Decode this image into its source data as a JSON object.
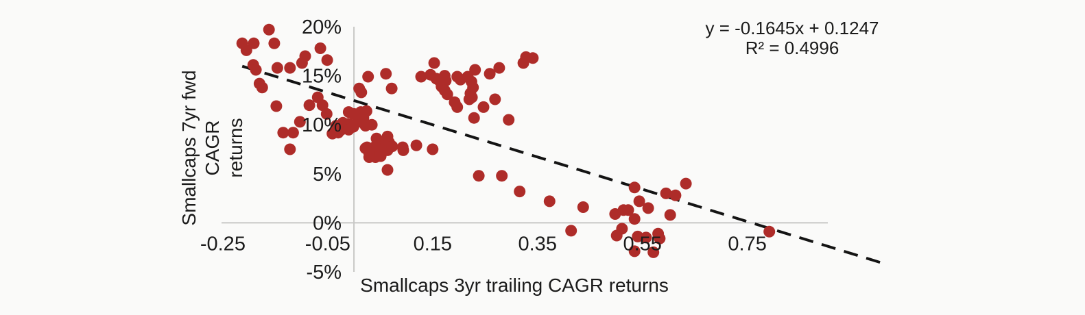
{
  "colors": {
    "dot": "#AE2C29",
    "axis_line": "#C8C8C6",
    "trendline": "#141414",
    "text": "#1b1b1b",
    "background": "#FAFAF9"
  },
  "chart_data": {
    "type": "scatter",
    "title": "",
    "xlabel": "Smallcaps 3yr trailing CAGR returns",
    "ylabel_lines": [
      "Smallcaps 7yr fwd CAGR",
      "returns"
    ],
    "legend": "none",
    "grid": "axis lines only",
    "xlim": [
      -0.2525,
      0.9035
    ],
    "ylim_percent": [
      -5,
      20
    ],
    "x_ticks": {
      "values": [
        -0.25,
        -0.05,
        0.15,
        0.35,
        0.55,
        0.75
      ],
      "labels": [
        "-0.25",
        "-0.05",
        "0.15",
        "0.35",
        "0.55",
        "0.75"
      ]
    },
    "y_ticks": {
      "values": [
        20,
        15,
        10,
        5,
        0,
        -5
      ],
      "labels": [
        "20%",
        "15%",
        "10%",
        "5%",
        "0%",
        "-5%"
      ]
    },
    "annotation": {
      "line1": "y = -0.1645x + 0.1247",
      "line2": "R² = 0.4996"
    },
    "trendline": {
      "style": "dashed",
      "slope": -0.1645,
      "intercept": 0.1247,
      "x_start": -0.213,
      "x_end": 1.015
    },
    "points": [
      [
        -0.213,
        18.3
      ],
      [
        -0.191,
        18.3
      ],
      [
        -0.205,
        17.6
      ],
      [
        -0.162,
        19.7
      ],
      [
        -0.152,
        18.3
      ],
      [
        -0.192,
        16.1
      ],
      [
        -0.187,
        15.6
      ],
      [
        -0.146,
        15.8
      ],
      [
        -0.122,
        15.8
      ],
      [
        -0.093,
        17.0
      ],
      [
        -0.099,
        16.3
      ],
      [
        -0.18,
        14.2
      ],
      [
        -0.175,
        13.8
      ],
      [
        -0.064,
        17.8
      ],
      [
        -0.051,
        16.6
      ],
      [
        -0.069,
        12.8
      ],
      [
        -0.085,
        12.0
      ],
      [
        -0.148,
        11.9
      ],
      [
        -0.06,
        12.0
      ],
      [
        -0.052,
        11.1
      ],
      [
        -0.103,
        10.3
      ],
      [
        -0.135,
        9.2
      ],
      [
        -0.116,
        9.2
      ],
      [
        -0.122,
        7.5
      ],
      [
        -0.034,
        9.9
      ],
      [
        -0.024,
        9.5
      ],
      [
        -0.021,
        10.2
      ],
      [
        -0.01,
        10.1
      ],
      [
        -0.03,
        9.2
      ],
      [
        -0.041,
        9.1
      ],
      [
        -0.01,
        9.5
      ],
      [
        -0.001,
        9.8
      ],
      [
        -0.01,
        11.3
      ],
      [
        0.0,
        11.1
      ],
      [
        0.013,
        11.3
      ],
      [
        0.024,
        11.4
      ],
      [
        0.008,
        10.3
      ],
      [
        0.018,
        10.7
      ],
      [
        0.01,
        13.7
      ],
      [
        0.014,
        13.3
      ],
      [
        0.027,
        14.9
      ],
      [
        0.061,
        15.2
      ],
      [
        0.072,
        13.7
      ],
      [
        0.022,
        9.9
      ],
      [
        0.025,
        7.7
      ],
      [
        0.029,
        6.7
      ],
      [
        0.034,
        10.0
      ],
      [
        0.041,
        7.8
      ],
      [
        0.041,
        6.7
      ],
      [
        0.043,
        8.6
      ],
      [
        0.051,
        6.8
      ],
      [
        0.054,
        7.8
      ],
      [
        0.061,
        8.1
      ],
      [
        0.064,
        8.8
      ],
      [
        0.064,
        7.4
      ],
      [
        0.067,
        8.2
      ],
      [
        0.073,
        7.8
      ],
      [
        0.093,
        7.7
      ],
      [
        0.094,
        7.4
      ],
      [
        0.022,
        7.6
      ],
      [
        0.029,
        7.1
      ],
      [
        0.064,
        5.4
      ],
      [
        0.119,
        7.9
      ],
      [
        0.15,
        7.5
      ],
      [
        0.153,
        16.3
      ],
      [
        0.128,
        14.9
      ],
      [
        0.146,
        15.1
      ],
      [
        0.157,
        14.7
      ],
      [
        0.163,
        14.5
      ],
      [
        0.173,
        15.0
      ],
      [
        0.175,
        14.5
      ],
      [
        0.167,
        13.9
      ],
      [
        0.173,
        13.5
      ],
      [
        0.178,
        13.1
      ],
      [
        0.197,
        14.9
      ],
      [
        0.203,
        14.6
      ],
      [
        0.217,
        14.9
      ],
      [
        0.224,
        14.4
      ],
      [
        0.231,
        15.6
      ],
      [
        0.227,
        13.8
      ],
      [
        0.222,
        13.2
      ],
      [
        0.225,
        12.8
      ],
      [
        0.22,
        12.6
      ],
      [
        0.192,
        12.3
      ],
      [
        0.197,
        11.8
      ],
      [
        0.247,
        11.8
      ],
      [
        0.259,
        15.2
      ],
      [
        0.277,
        15.8
      ],
      [
        0.269,
        12.6
      ],
      [
        0.229,
        10.7
      ],
      [
        0.295,
        10.5
      ],
      [
        0.323,
        16.3
      ],
      [
        0.328,
        16.9
      ],
      [
        0.341,
        16.8
      ],
      [
        0.238,
        4.8
      ],
      [
        0.282,
        4.8
      ],
      [
        0.316,
        3.2
      ],
      [
        0.373,
        2.2
      ],
      [
        0.437,
        1.6
      ],
      [
        0.414,
        -0.8
      ],
      [
        0.498,
        0.9
      ],
      [
        0.514,
        1.3
      ],
      [
        0.523,
        1.3
      ],
      [
        0.535,
        0.4
      ],
      [
        0.544,
        2.2
      ],
      [
        0.561,
        1.5
      ],
      [
        0.603,
        0.8
      ],
      [
        0.511,
        -0.6
      ],
      [
        0.501,
        -1.3
      ],
      [
        0.541,
        -1.4
      ],
      [
        0.557,
        -1.5
      ],
      [
        0.58,
        -1.1
      ],
      [
        0.583,
        -1.6
      ],
      [
        0.535,
        -2.9
      ],
      [
        0.571,
        -3.0
      ],
      [
        0.595,
        3.0
      ],
      [
        0.613,
        2.8
      ],
      [
        0.633,
        4.0
      ],
      [
        0.535,
        3.6
      ],
      [
        0.792,
        -0.9
      ]
    ]
  }
}
